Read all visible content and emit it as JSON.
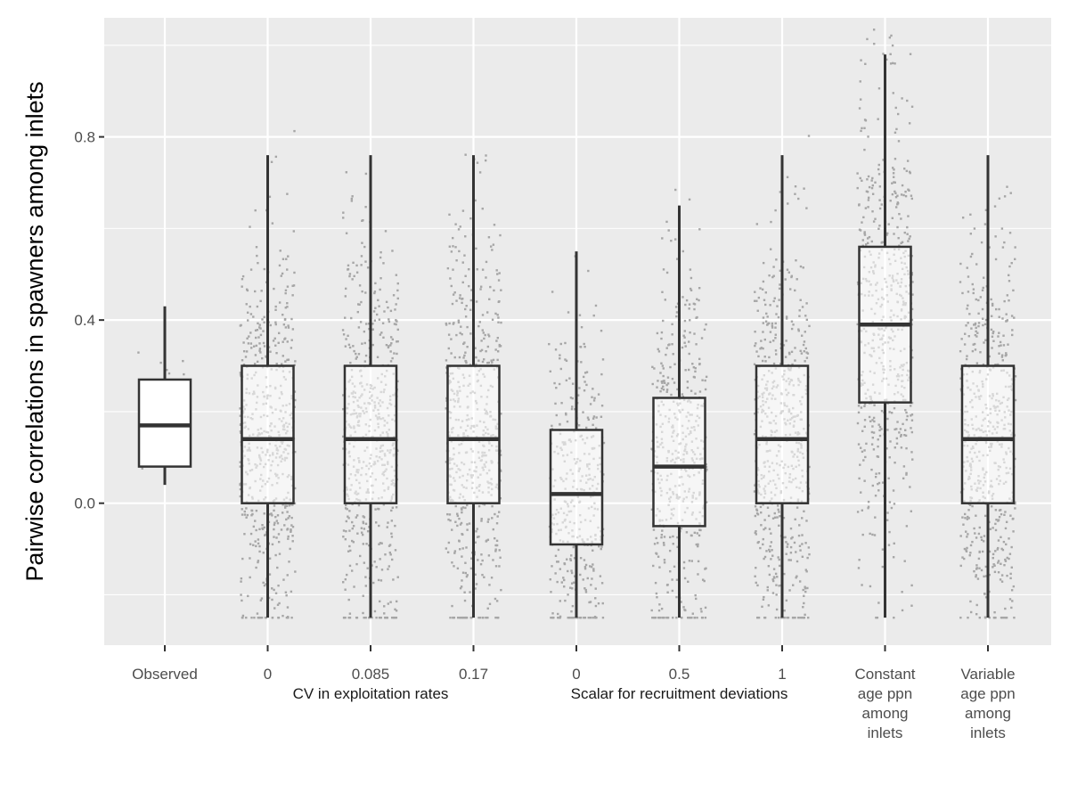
{
  "chart_data": {
    "type": "boxplot",
    "ylabel": "Pairwise correlations in spawners among inlets",
    "xlabel": "",
    "ylim": [
      -0.31,
      1.06
    ],
    "y_ticks": [
      0.0,
      0.4,
      0.8
    ],
    "y_tick_labels": [
      "0.0",
      "0.4",
      "0.8"
    ],
    "grid": true,
    "panel_background": "#ebebeb",
    "grid_color": "#ffffff",
    "box_stroke": "#333333",
    "jitter_color": "#a6a6a6",
    "categories": [
      {
        "label_lines": [
          "Observed"
        ],
        "min": 0.04,
        "q1": 0.08,
        "median": 0.17,
        "q3": 0.27,
        "max": 0.43,
        "n_points": 12
      },
      {
        "label_lines": [
          "0"
        ],
        "min": -0.25,
        "q1": 0.0,
        "median": 0.14,
        "q3": 0.3,
        "max": 0.76,
        "n_points": 550
      },
      {
        "label_lines": [
          "0.085"
        ],
        "min": -0.25,
        "q1": 0.0,
        "median": 0.14,
        "q3": 0.3,
        "max": 0.76,
        "n_points": 550
      },
      {
        "label_lines": [
          "0.17"
        ],
        "min": -0.25,
        "q1": 0.0,
        "median": 0.14,
        "q3": 0.3,
        "max": 0.76,
        "n_points": 550
      },
      {
        "label_lines": [
          "0"
        ],
        "min": -0.25,
        "q1": -0.09,
        "median": 0.02,
        "q3": 0.16,
        "max": 0.55,
        "n_points": 360
      },
      {
        "label_lines": [
          "0.5"
        ],
        "min": -0.25,
        "q1": -0.05,
        "median": 0.08,
        "q3": 0.23,
        "max": 0.65,
        "n_points": 450
      },
      {
        "label_lines": [
          "1"
        ],
        "min": -0.25,
        "q1": 0.0,
        "median": 0.14,
        "q3": 0.3,
        "max": 0.76,
        "n_points": 550
      },
      {
        "label_lines": [
          "Constant",
          "age ppn",
          "among",
          "inlets"
        ],
        "min": -0.25,
        "q1": 0.22,
        "median": 0.39,
        "q3": 0.56,
        "max": 0.98,
        "n_points": 550
      },
      {
        "label_lines": [
          "Variable",
          "age ppn",
          "among",
          "inlets"
        ],
        "min": -0.25,
        "q1": 0.0,
        "median": 0.14,
        "q3": 0.3,
        "max": 0.76,
        "n_points": 550
      }
    ],
    "group_labels": [
      {
        "text": "CV in exploitation rates",
        "span": [
          1,
          3
        ]
      },
      {
        "text": "Scalar for recruitment deviations",
        "span": [
          4,
          6
        ]
      }
    ]
  }
}
